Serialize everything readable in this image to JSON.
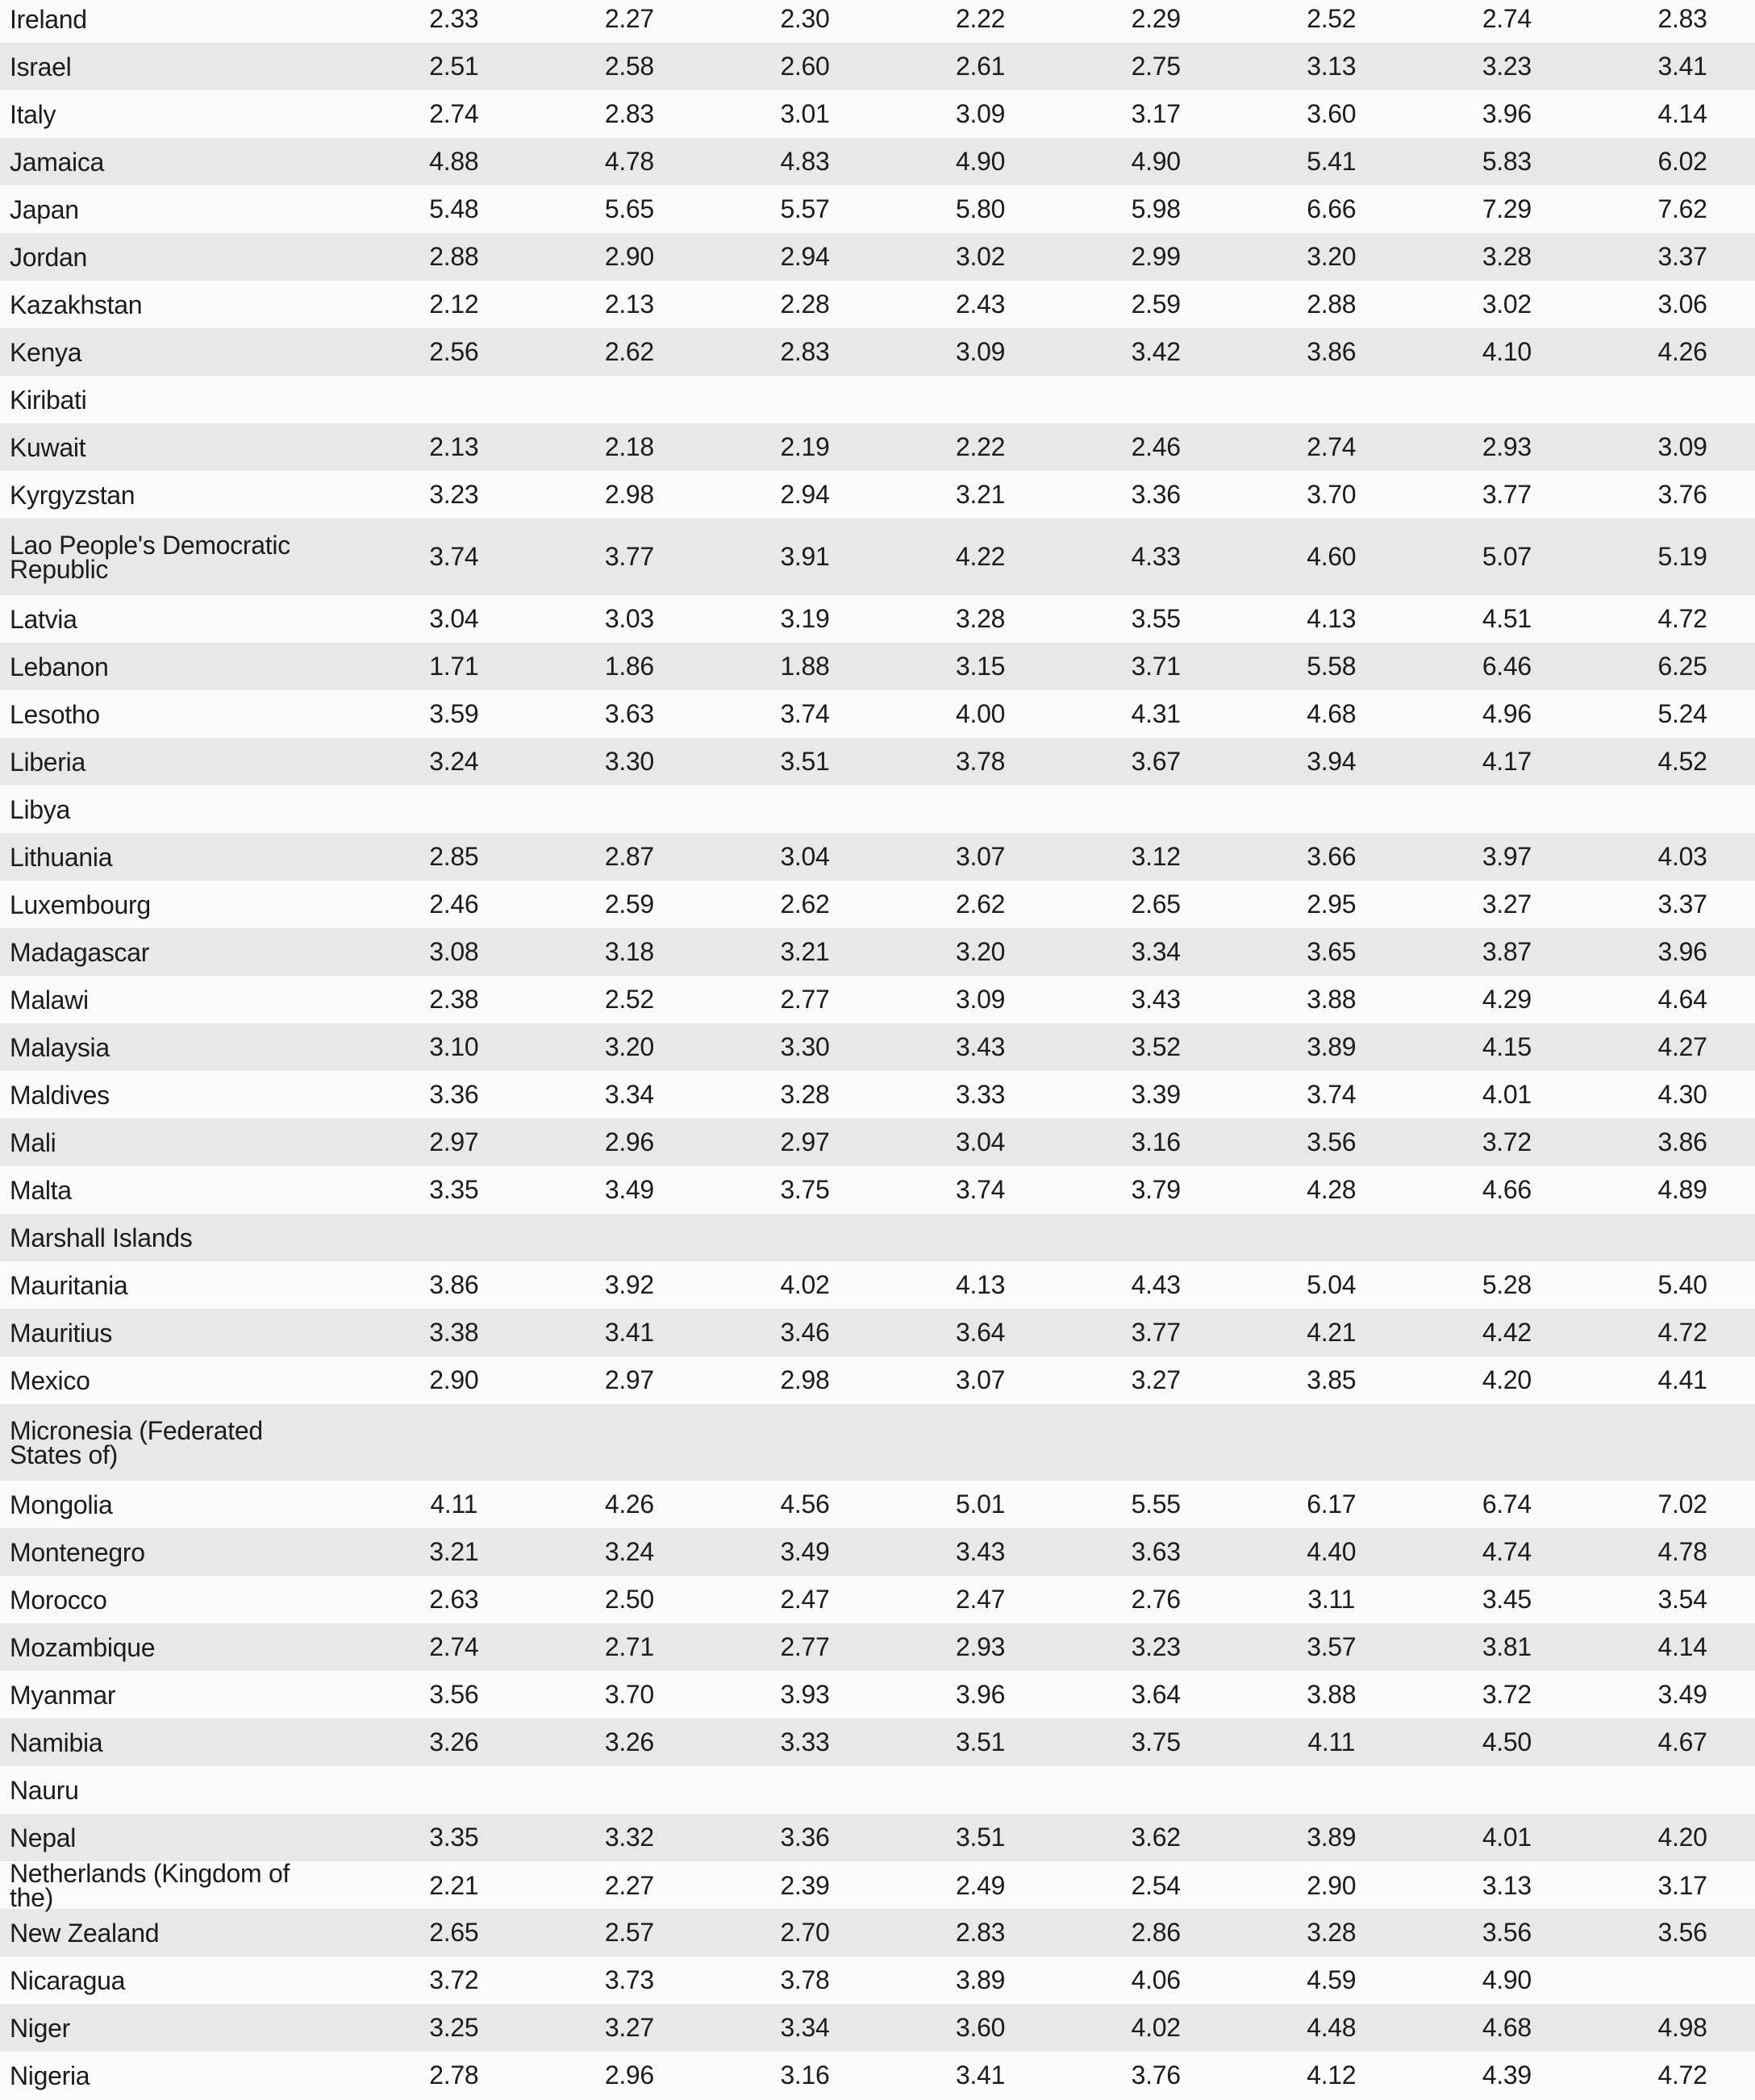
{
  "rows": [
    [
      "Ireland",
      "2.33",
      "2.27",
      "2.30",
      "2.22",
      "2.29",
      "2.52",
      "2.74",
      "2.83"
    ],
    [
      "Israel",
      "2.51",
      "2.58",
      "2.60",
      "2.61",
      "2.75",
      "3.13",
      "3.23",
      "3.41"
    ],
    [
      "Italy",
      "2.74",
      "2.83",
      "3.01",
      "3.09",
      "3.17",
      "3.60",
      "3.96",
      "4.14"
    ],
    [
      "Jamaica",
      "4.88",
      "4.78",
      "4.83",
      "4.90",
      "4.90",
      "5.41",
      "5.83",
      "6.02"
    ],
    [
      "Japan",
      "5.48",
      "5.65",
      "5.57",
      "5.80",
      "5.98",
      "6.66",
      "7.29",
      "7.62"
    ],
    [
      "Jordan",
      "2.88",
      "2.90",
      "2.94",
      "3.02",
      "2.99",
      "3.20",
      "3.28",
      "3.37"
    ],
    [
      "Kazakhstan",
      "2.12",
      "2.13",
      "2.28",
      "2.43",
      "2.59",
      "2.88",
      "3.02",
      "3.06"
    ],
    [
      "Kenya",
      "2.56",
      "2.62",
      "2.83",
      "3.09",
      "3.42",
      "3.86",
      "4.10",
      "4.26"
    ],
    [
      "Kiribati",
      "",
      "",
      "",
      "",
      "",
      "",
      "",
      ""
    ],
    [
      "Kuwait",
      "2.13",
      "2.18",
      "2.19",
      "2.22",
      "2.46",
      "2.74",
      "2.93",
      "3.09"
    ],
    [
      "Kyrgyzstan",
      "3.23",
      "2.98",
      "2.94",
      "3.21",
      "3.36",
      "3.70",
      "3.77",
      "3.76"
    ],
    [
      "Lao People's Democratic Republic",
      "3.74",
      "3.77",
      "3.91",
      "4.22",
      "4.33",
      "4.60",
      "5.07",
      "5.19"
    ],
    [
      "Latvia",
      "3.04",
      "3.03",
      "3.19",
      "3.28",
      "3.55",
      "4.13",
      "4.51",
      "4.72"
    ],
    [
      "Lebanon",
      "1.71",
      "1.86",
      "1.88",
      "3.15",
      "3.71",
      "5.58",
      "6.46",
      "6.25"
    ],
    [
      "Lesotho",
      "3.59",
      "3.63",
      "3.74",
      "4.00",
      "4.31",
      "4.68",
      "4.96",
      "5.24"
    ],
    [
      "Liberia",
      "3.24",
      "3.30",
      "3.51",
      "3.78",
      "3.67",
      "3.94",
      "4.17",
      "4.52"
    ],
    [
      "Libya",
      "",
      "",
      "",
      "",
      "",
      "",
      "",
      ""
    ],
    [
      "Lithuania",
      "2.85",
      "2.87",
      "3.04",
      "3.07",
      "3.12",
      "3.66",
      "3.97",
      "4.03"
    ],
    [
      "Luxembourg",
      "2.46",
      "2.59",
      "2.62",
      "2.62",
      "2.65",
      "2.95",
      "3.27",
      "3.37"
    ],
    [
      "Madagascar",
      "3.08",
      "3.18",
      "3.21",
      "3.20",
      "3.34",
      "3.65",
      "3.87",
      "3.96"
    ],
    [
      "Malawi",
      "2.38",
      "2.52",
      "2.77",
      "3.09",
      "3.43",
      "3.88",
      "4.29",
      "4.64"
    ],
    [
      "Malaysia",
      "3.10",
      "3.20",
      "3.30",
      "3.43",
      "3.52",
      "3.89",
      "4.15",
      "4.27"
    ],
    [
      "Maldives",
      "3.36",
      "3.34",
      "3.28",
      "3.33",
      "3.39",
      "3.74",
      "4.01",
      "4.30"
    ],
    [
      "Mali",
      "2.97",
      "2.96",
      "2.97",
      "3.04",
      "3.16",
      "3.56",
      "3.72",
      "3.86"
    ],
    [
      "Malta",
      "3.35",
      "3.49",
      "3.75",
      "3.74",
      "3.79",
      "4.28",
      "4.66",
      "4.89"
    ],
    [
      "Marshall Islands",
      "",
      "",
      "",
      "",
      "",
      "",
      "",
      ""
    ],
    [
      "Mauritania",
      "3.86",
      "3.92",
      "4.02",
      "4.13",
      "4.43",
      "5.04",
      "5.28",
      "5.40"
    ],
    [
      "Mauritius",
      "3.38",
      "3.41",
      "3.46",
      "3.64",
      "3.77",
      "4.21",
      "4.42",
      "4.72"
    ],
    [
      "Mexico",
      "2.90",
      "2.97",
      "2.98",
      "3.07",
      "3.27",
      "3.85",
      "4.20",
      "4.41"
    ],
    [
      "Micronesia (Federated States of)",
      "",
      "",
      "",
      "",
      "",
      "",
      "",
      ""
    ],
    [
      "Mongolia",
      "4.11",
      "4.26",
      "4.56",
      "5.01",
      "5.55",
      "6.17",
      "6.74",
      "7.02"
    ],
    [
      "Montenegro",
      "3.21",
      "3.24",
      "3.49",
      "3.43",
      "3.63",
      "4.40",
      "4.74",
      "4.78"
    ],
    [
      "Morocco",
      "2.63",
      "2.50",
      "2.47",
      "2.47",
      "2.76",
      "3.11",
      "3.45",
      "3.54"
    ],
    [
      "Mozambique",
      "2.74",
      "2.71",
      "2.77",
      "2.93",
      "3.23",
      "3.57",
      "3.81",
      "4.14"
    ],
    [
      "Myanmar",
      "3.56",
      "3.70",
      "3.93",
      "3.96",
      "3.64",
      "3.88",
      "3.72",
      "3.49"
    ],
    [
      "Namibia",
      "3.26",
      "3.26",
      "3.33",
      "3.51",
      "3.75",
      "4.11",
      "4.50",
      "4.67"
    ],
    [
      "Nauru",
      "",
      "",
      "",
      "",
      "",
      "",
      "",
      ""
    ],
    [
      "Nepal",
      "3.35",
      "3.32",
      "3.36",
      "3.51",
      "3.62",
      "3.89",
      "4.01",
      "4.20"
    ],
    [
      "Netherlands (Kingdom of the)",
      "2.21",
      "2.27",
      "2.39",
      "2.49",
      "2.54",
      "2.90",
      "3.13",
      "3.17"
    ],
    [
      "New Zealand",
      "2.65",
      "2.57",
      "2.70",
      "2.83",
      "2.86",
      "3.28",
      "3.56",
      "3.56"
    ],
    [
      "Nicaragua",
      "3.72",
      "3.73",
      "3.78",
      "3.89",
      "4.06",
      "4.59",
      "4.90",
      ""
    ],
    [
      "Niger",
      "3.25",
      "3.27",
      "3.34",
      "3.60",
      "4.02",
      "4.48",
      "4.68",
      "4.98"
    ],
    [
      "Nigeria",
      "2.78",
      "2.96",
      "3.16",
      "3.41",
      "3.76",
      "4.12",
      "4.39",
      "4.72"
    ]
  ]
}
